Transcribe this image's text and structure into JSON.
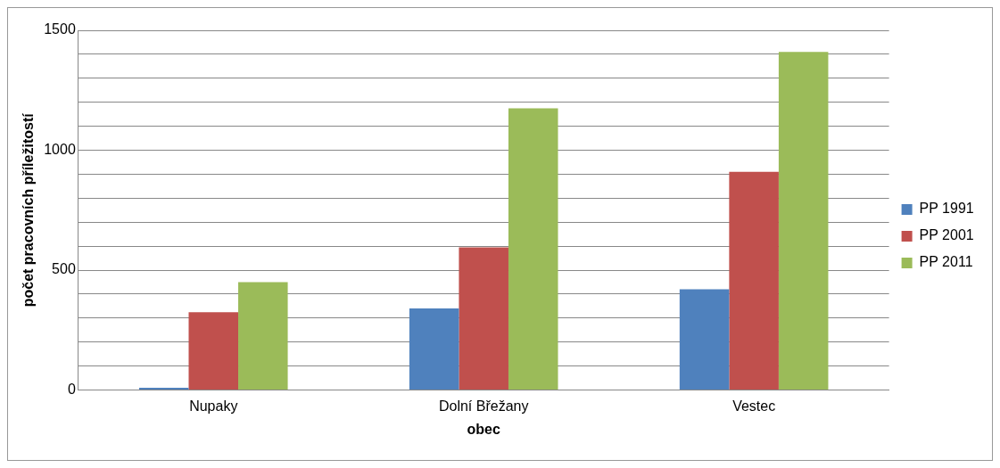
{
  "chart_data": {
    "type": "bar",
    "xlabel": "obec",
    "ylabel": "počet pracovních příležitostí",
    "categories": [
      "Nupaky",
      "Dolní Břežany",
      "Vestec"
    ],
    "series": [
      {
        "name": "PP 1991",
        "color": "#4f81bd",
        "values": [
          10,
          340,
          420
        ]
      },
      {
        "name": "PP 2001",
        "color": "#c0504d",
        "values": [
          325,
          595,
          910
        ]
      },
      {
        "name": "PP 2011",
        "color": "#9bbb59",
        "values": [
          450,
          1175,
          1410
        ]
      }
    ],
    "ylim": [
      0,
      1500
    ],
    "yticks": [
      0,
      {
        "value": 100,
        "label": null
      },
      {
        "value": 200,
        "label": null
      },
      {
        "value": 300,
        "label": null
      },
      {
        "value": 400,
        "label": null
      },
      500,
      {
        "value": 600,
        "label": null
      },
      {
        "value": 700,
        "label": null
      },
      {
        "value": 800,
        "label": null
      },
      {
        "value": 900,
        "label": null
      },
      1000,
      {
        "value": 1100,
        "label": null
      },
      {
        "value": 1200,
        "label": null
      },
      {
        "value": 1300,
        "label": null
      },
      {
        "value": 1400,
        "label": null
      },
      1500
    ],
    "grid": "y",
    "legend": "right"
  }
}
